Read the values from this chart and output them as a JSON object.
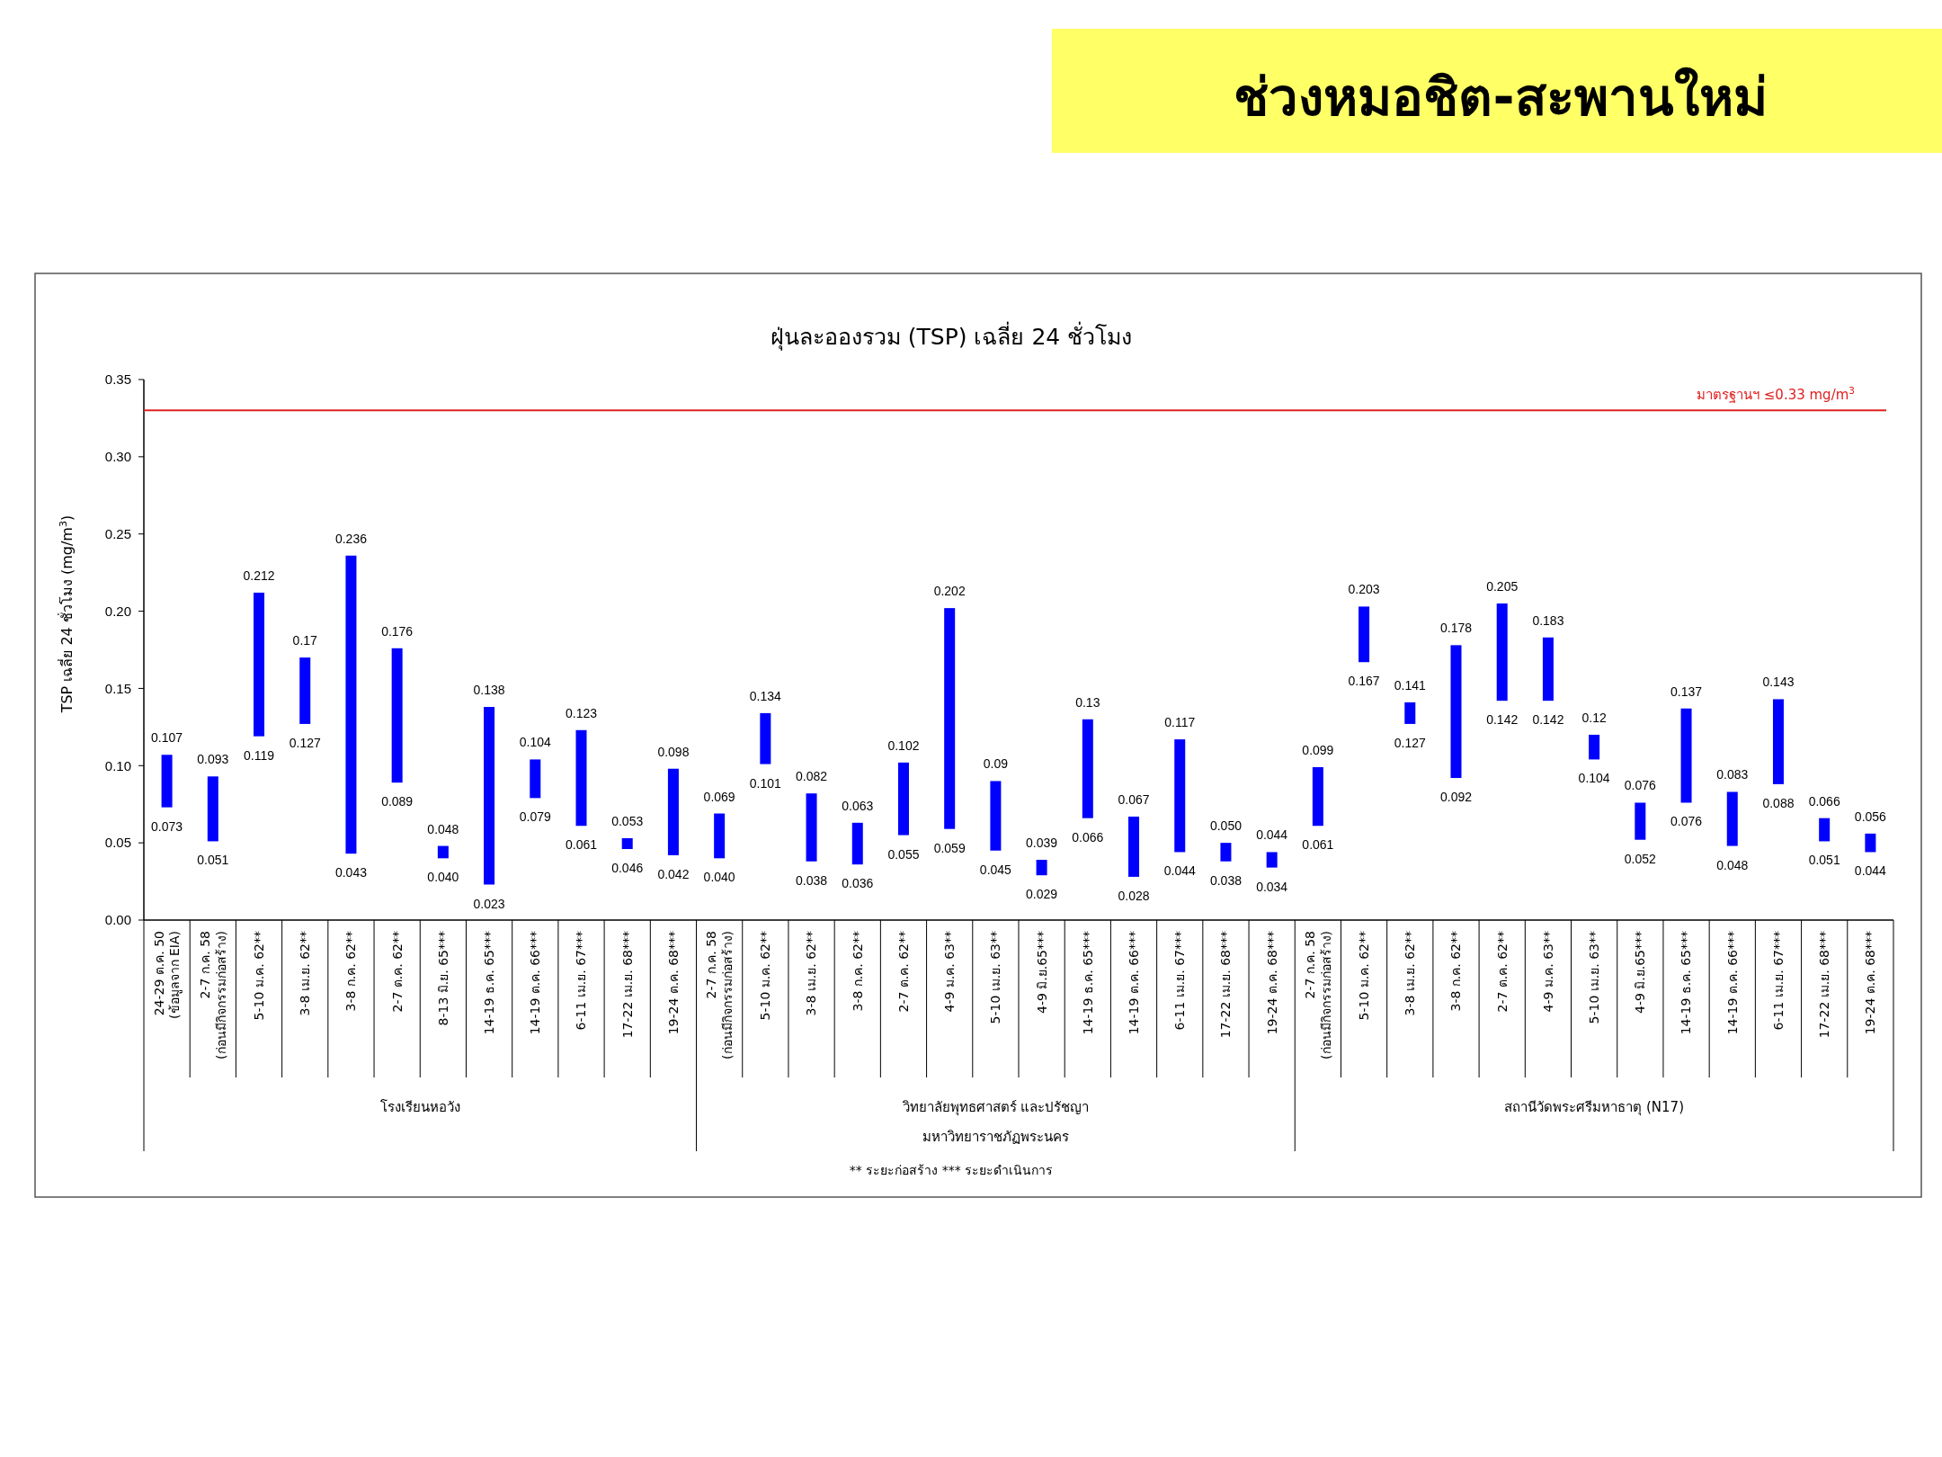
{
  "chart_data": {
    "type": "bar",
    "title": "ช่วงหมอชิต-สะพานใหม่",
    "subtitle": "ฝุ่นละอองรวม (TSP) เฉลี่ย 24 ชั่วโมง",
    "ylabel": "TSP เฉลี่ย 24 ชั่วโมง (mg/m$^{3}$)",
    "categories": [
      "24-29 ต.ค. 50\n(ข้อมูลจาก EIA)",
      "2-7 ก.ค. 58\n(ก่อนมีกิจกรรมก่อสร้าง)",
      "5-10 ม.ค. 62**",
      "3-8 เม.ย. 62**",
      "3-8 ก.ค. 62**",
      "2-7 ต.ค. 62**",
      "8-13 มิ.ย. 65***",
      "14-19 ธ.ค. 65***",
      "14-19 ต.ค. 66***",
      "6-11 เม.ย. 67***",
      "17-22 เม.ย. 68***",
      "19-24 ต.ค. 68***",
      "2-7 ก.ค. 58\n(ก่อนมีกิจกรรมก่อสร้าง)",
      "5-10 ม.ค. 62**",
      "3-8 เม.ย. 62**",
      "3-8 ก.ค. 62**",
      "2-7 ต.ค. 62**",
      "4-9 ม.ค. 63**",
      "5-10 เม.ย. 63**",
      "4-9 มิ.ย.65***",
      "14-19 ธ.ค. 65***",
      "14-19 ต.ค. 66***",
      "6-11 เม.ย. 67***",
      "17-22 เม.ย. 68***",
      "19-24 ต.ค. 68***",
      "2-7 ก.ค. 58\n(ก่อนมีกิจกรรมก่อสร้าง)",
      "5-10 ม.ค. 62**",
      "3-8 เม.ย. 62**",
      "3-8 ก.ค. 62**",
      "2-7 ต.ค. 62**",
      "4-9 ม.ค. 63**",
      "5-10 เม.ย. 63**",
      "4-9 มิ.ย.65***",
      "14-19 ธ.ค. 65***",
      "14-19 ต.ค. 66***",
      "6-11 เม.ย. 67***",
      "17-22 เม.ย. 68***",
      "19-24 ต.ค. 68***"
    ],
    "base": [
      0.073,
      0.051,
      0.119,
      0.127,
      0.043,
      0.089,
      0.04,
      0.023,
      0.079,
      0.061,
      0.046,
      0.042,
      0.04,
      0.101,
      0.038,
      0.036,
      0.055,
      0.059,
      0.045,
      0.029,
      0.066,
      0.028,
      0.044,
      0.038,
      0.034,
      0.061,
      0.167,
      0.127,
      0.092,
      0.142,
      0.142,
      0.104,
      0.052,
      0.076,
      0.048,
      0.088,
      0.051,
      0.044
    ],
    "values": [
      0.034,
      0.042,
      0.093,
      0.043,
      0.193,
      0.087,
      0.008,
      0.115,
      0.025,
      0.062,
      0.007,
      0.056,
      0.029,
      0.033,
      0.044,
      0.027,
      0.047,
      0.143,
      0.045,
      0.01,
      0.064,
      0.039,
      0.073,
      0.012,
      0.01,
      0.038,
      0.036,
      0.014,
      0.086,
      0.063,
      0.041,
      0.016,
      0.024,
      0.061,
      0.035,
      0.055,
      0.015,
      0.012
    ],
    "value_labels": [
      "0.107",
      "0.093",
      "0.212",
      "0.17",
      "0.236",
      "0.176",
      "0.048",
      "0.138",
      "0.104",
      "0.123",
      "0.053",
      "0.098",
      "0.069",
      "0.134",
      "0.082",
      "0.063",
      "0.102",
      "0.202",
      "0.09",
      "0.039",
      "0.13",
      "0.067",
      "0.117",
      "0.050",
      "0.044",
      "0.099",
      "0.203",
      "0.141",
      "0.178",
      "0.205",
      "0.183",
      "0.12",
      "0.076",
      "0.137",
      "0.083",
      "0.143",
      "0.066",
      "0.056"
    ],
    "color": "#0000ff",
    "ylim": [
      0,
      0.35
    ],
    "yticks": [
      {
        "value": 0,
        "label": "0.00"
      },
      {
        "value": 0.05,
        "label": "0.05"
      },
      {
        "value": 0.1,
        "label": "0.10"
      },
      {
        "value": 0.15,
        "label": "0.15"
      },
      {
        "value": 0.2,
        "label": "0.20"
      },
      {
        "value": 0.25,
        "label": "0.25"
      },
      {
        "value": 0.3,
        "label": "0.30"
      },
      {
        "value": 0.35,
        "label": "0.35"
      }
    ],
    "ref_lines": [
      {
        "axis": "y",
        "value": 0.33,
        "label": "มาตรฐานฯ ≤0.33 mg/m$^{3}$",
        "color": "#e02020"
      }
    ],
    "annotations": [
      {
        "text": "0.073",
        "y": 0.073
      },
      {
        "text": "0.051",
        "y": 0.051
      },
      {
        "text": "0.119",
        "y": 0.119
      },
      {
        "text": "0.127",
        "y": 0.127
      },
      {
        "text": "0.043",
        "y": 0.043
      },
      {
        "text": "0.089",
        "y": 0.089
      },
      {
        "text": "0.040",
        "y": 0.04
      },
      {
        "text": "0.023",
        "y": 0.023
      },
      {
        "text": "0.079",
        "y": 0.079
      },
      {
        "text": "0.061",
        "y": 0.061
      },
      {
        "text": "0.046",
        "y": 0.046
      },
      {
        "text": "0.042",
        "y": 0.042
      },
      {
        "text": "0.040",
        "y": 0.04
      },
      {
        "text": "0.101",
        "y": 0.101
      },
      {
        "text": "0.038",
        "y": 0.038
      },
      {
        "text": "0.036",
        "y": 0.036
      },
      {
        "text": "0.055",
        "y": 0.055
      },
      {
        "text": "0.059",
        "y": 0.059
      },
      {
        "text": "0.045",
        "y": 0.045
      },
      {
        "text": "0.029",
        "y": 0.029
      },
      {
        "text": "0.066",
        "y": 0.066
      },
      {
        "text": "0.028",
        "y": 0.028
      },
      {
        "text": "0.044",
        "y": 0.044
      },
      {
        "text": "0.038",
        "y": 0.038
      },
      {
        "text": "0.034",
        "y": 0.034
      },
      {
        "text": "0.061",
        "y": 0.061
      },
      {
        "text": "0.167",
        "y": 0.167
      },
      {
        "text": "0.127",
        "y": 0.127
      },
      {
        "text": "0.092",
        "y": 0.092
      },
      {
        "text": "0.142",
        "y": 0.142
      },
      {
        "text": "0.142",
        "y": 0.142
      },
      {
        "text": "0.104",
        "y": 0.104
      },
      {
        "text": "0.052",
        "y": 0.052
      },
      {
        "text": "0.076",
        "y": 0.076
      },
      {
        "text": "0.048",
        "y": 0.048
      },
      {
        "text": "0.088",
        "y": 0.088
      },
      {
        "text": "0.051",
        "y": 0.051
      },
      {
        "text": "0.044",
        "y": 0.044
      },
      "โรงเรียนหอวัง",
      "วิทยาลัยพุทธศาสตร์ และปรัชญา\nมหาวิทยาราชภัฏพระนคร",
      "สถานีวัดพระศรีมหาธาตุ (N17)",
      "** ระยะก่อสร้าง    *** ระยะดำเนินการ"
    ],
    "grid": false
  }
}
